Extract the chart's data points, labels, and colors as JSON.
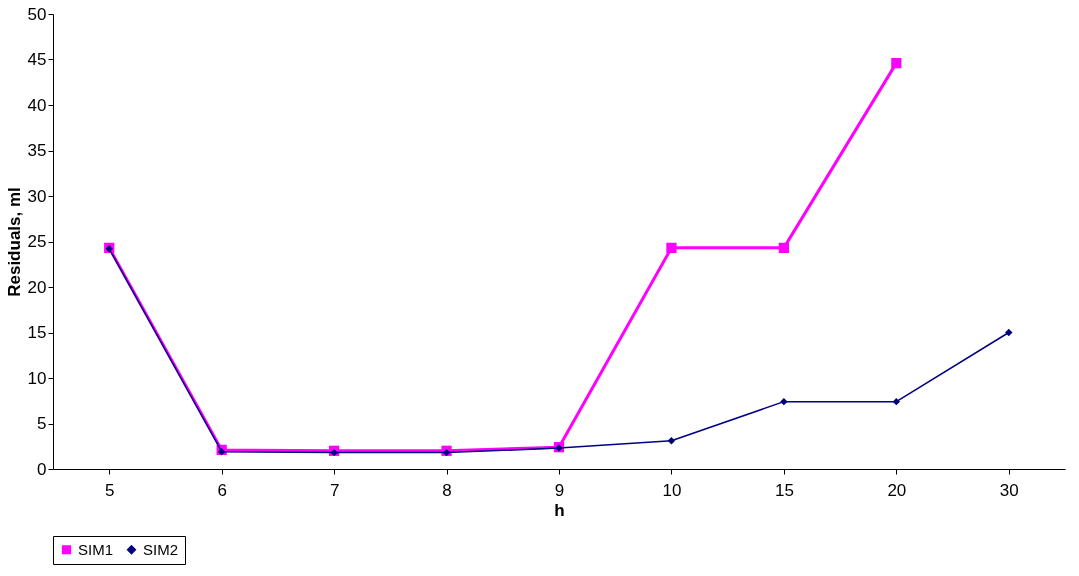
{
  "chart_data": {
    "type": "line",
    "xlabel": "h",
    "ylabel": "Residuals, ml",
    "categories": [
      "5",
      "6",
      "7",
      "8",
      "9",
      "10",
      "15",
      "20",
      "30"
    ],
    "series": [
      {
        "name": "SIM1",
        "color": "#ff00ff",
        "marker": "square",
        "values": [
          24.3,
          2.1,
          2.0,
          2.0,
          2.4,
          24.3,
          24.3,
          44.6,
          null
        ]
      },
      {
        "name": "SIM2",
        "color": "#000080",
        "marker": "diamond",
        "values": [
          24.2,
          1.9,
          1.8,
          1.8,
          2.3,
          3.1,
          7.4,
          7.4,
          15.0
        ]
      }
    ],
    "ylim": [
      0,
      50
    ],
    "yticks": [
      0,
      5,
      10,
      15,
      20,
      25,
      30,
      35,
      40,
      45,
      50
    ],
    "grid": false,
    "legend": "bottom"
  }
}
